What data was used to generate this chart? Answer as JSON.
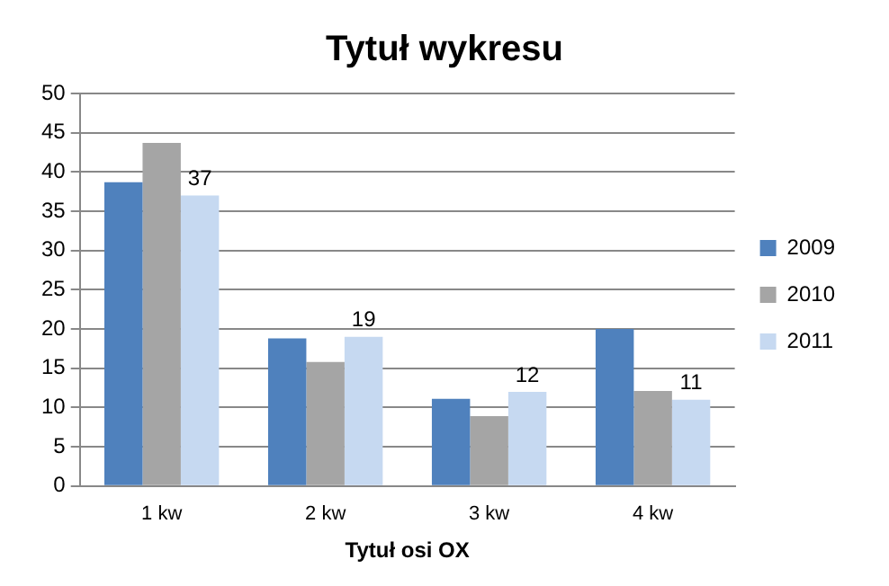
{
  "chart_data": {
    "type": "bar",
    "title": "Tytuł wykresu",
    "xlabel": "Tytuł osi OX",
    "categories": [
      "1 kw",
      "2 kw",
      "3 kw",
      "4 kw"
    ],
    "series": [
      {
        "name": "2009",
        "color": "#4f81bd",
        "values": [
          38.7,
          18.8,
          11.1,
          20
        ]
      },
      {
        "name": "2010",
        "color": "#a5a5a5",
        "values": [
          43.7,
          15.8,
          8.9,
          12.1
        ]
      },
      {
        "name": "2011",
        "color": "#c6d9f1",
        "values": [
          37,
          19,
          12,
          11
        ],
        "value_labels": [
          "37",
          "19",
          "12",
          "11"
        ]
      }
    ],
    "ylim": [
      0,
      50
    ],
    "yticks": [
      0,
      5,
      10,
      15,
      20,
      25,
      30,
      35,
      40,
      45,
      50
    ],
    "grid": "y",
    "legend": "right"
  }
}
